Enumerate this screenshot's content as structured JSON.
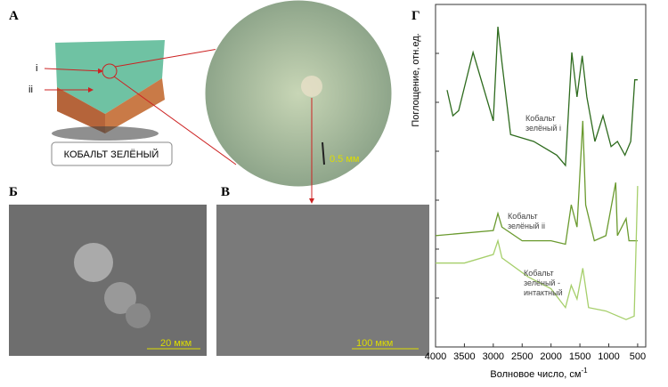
{
  "panels": {
    "a": {
      "label": "А",
      "marker_i": "i",
      "marker_ii": "ii",
      "caption": "КОБАЛЬТ ЗЕЛЁНЫЙ",
      "scale": "0.5 мм"
    },
    "b": {
      "label": "Б",
      "scale": "20 мкм"
    },
    "c": {
      "label": "В",
      "scale": "100 мкм"
    }
  },
  "chart_data": {
    "type": "line",
    "panel_label": "Г",
    "x_label": "Волновое число, см",
    "x_label_sup": "-1",
    "y_label": "Поглощение, отн.ед.",
    "xlim": [
      4000,
      360
    ],
    "xticks": [
      4000,
      3500,
      3000,
      2500,
      2000,
      1500,
      1000,
      500
    ],
    "ylim": [
      0,
      10
    ],
    "series": [
      {
        "name": "Кобальт зелёный i",
        "color": "#2e6b1e",
        "x": [
          3800,
          3700,
          3600,
          3350,
          3000,
          2920,
          2850,
          2700,
          2300,
          1900,
          1750,
          1640,
          1550,
          1460,
          1380,
          1240,
          1100,
          960,
          850,
          720,
          620,
          550,
          500
        ],
        "values": [
          7.5,
          6.75,
          6.9,
          8.6,
          6.6,
          9.35,
          8.3,
          6.2,
          6.0,
          5.6,
          5.3,
          8.6,
          7.3,
          8.5,
          7.3,
          6.0,
          6.75,
          5.85,
          6.0,
          5.6,
          6.0,
          7.8,
          7.8
        ]
      },
      {
        "name": "Кобальт зелёный ii",
        "color": "#6a9a2e",
        "x": [
          4000,
          3000,
          2920,
          2850,
          2500,
          2000,
          1750,
          1650,
          1550,
          1450,
          1400,
          1250,
          1050,
          880,
          850,
          700,
          650,
          500
        ],
        "values": [
          3.25,
          3.4,
          3.9,
          3.5,
          3.1,
          3.1,
          3.0,
          4.15,
          3.5,
          6.6,
          4.15,
          3.1,
          3.25,
          4.8,
          3.25,
          3.75,
          3.1,
          3.1
        ]
      },
      {
        "name": "Кобальт зелёный - интактный",
        "color": "#a6cf6b",
        "x": [
          4000,
          3500,
          3000,
          2920,
          2850,
          2400,
          2000,
          1750,
          1650,
          1550,
          1450,
          1350,
          1050,
          700,
          560,
          500
        ],
        "values": [
          2.45,
          2.45,
          2.7,
          3.1,
          2.6,
          2.05,
          1.7,
          1.15,
          1.8,
          1.4,
          2.3,
          1.15,
          1.05,
          0.8,
          0.9,
          4.7
        ]
      }
    ]
  }
}
